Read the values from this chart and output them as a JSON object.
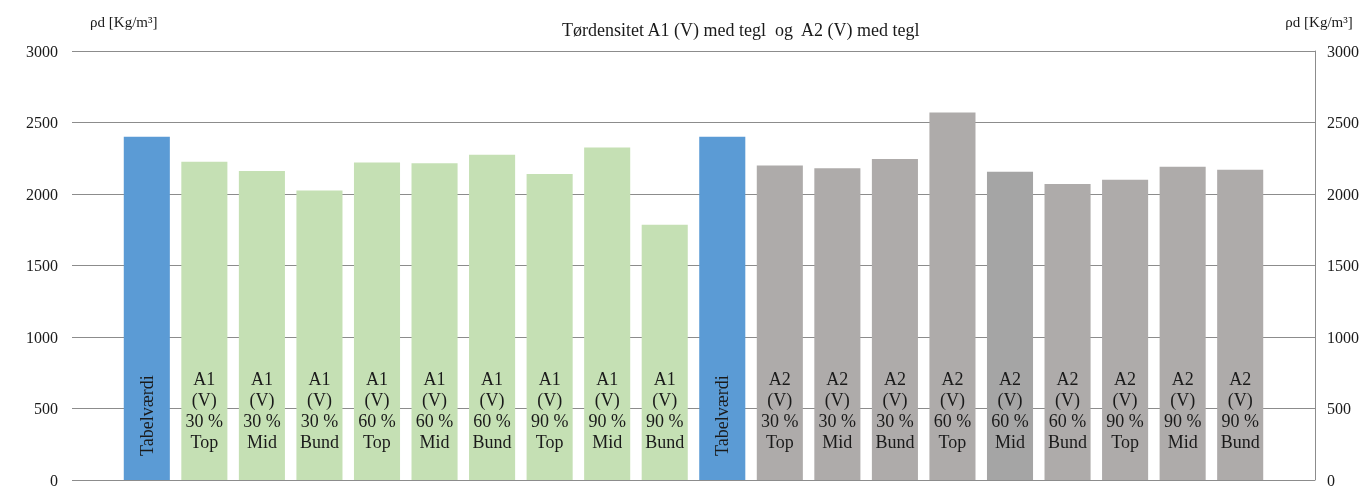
{
  "chart_data": {
    "type": "bar",
    "title": "Tørdensitet A1 (V) med tegl  og  A2 (V) med tegl",
    "ylabel": "ρd [Kg/m³]",
    "y2label": "ρd [Kg/m³]",
    "categories": [
      "Tabelværdi",
      "A1 (V) 30 % Top",
      "A1 (V) 30 % Mid",
      "A1 (V) 30 % Bund",
      "A1 (V) 60 % Top",
      "A1 (V) 60 % Mid",
      "A1 (V) 60 % Bund",
      "A1 (V) 90 % Top",
      "A1 (V) 90 % Mid",
      "A1 (V) 90 % Bund",
      "Tabelværdi",
      "A2 (V) 30 % Top",
      "A2 (V) 30 % Mid",
      "A2 (V) 30 % Bund",
      "A2 (V) 60 % Top",
      "A2 (V) 60 % Mid",
      "A2 (V) 60 % Bund",
      "A2 (V) 90 % Top",
      "A2 (V) 90 % Mid",
      "A2 (V) 90 % Bund"
    ],
    "values": [
      2400,
      2225,
      2160,
      2025,
      2220,
      2215,
      2275,
      2140,
      2325,
      1785,
      2400,
      2200,
      2180,
      2245,
      2570,
      2155,
      2070,
      2100,
      2190,
      2170
    ],
    "colors": [
      "#5b9bd5",
      "#c5e0b4",
      "#c5e0b4",
      "#c5e0b4",
      "#c5e0b4",
      "#c5e0b4",
      "#c5e0b4",
      "#c5e0b4",
      "#c5e0b4",
      "#c5e0b4",
      "#5b9bd5",
      "#aeabaa",
      "#aeabaa",
      "#aeabaa",
      "#aeabaa",
      "#a5a5a5",
      "#aeabaa",
      "#aeabaa",
      "#aeabaa",
      "#aeabaa"
    ],
    "ylim": [
      0,
      3000
    ],
    "yticks": [
      0,
      500,
      1000,
      1500,
      2000,
      2500,
      3000
    ],
    "y2lim": [
      0,
      3000
    ],
    "y2ticks": [
      0,
      500,
      1000,
      1500,
      2000,
      2500,
      3000
    ],
    "grid": "y"
  }
}
